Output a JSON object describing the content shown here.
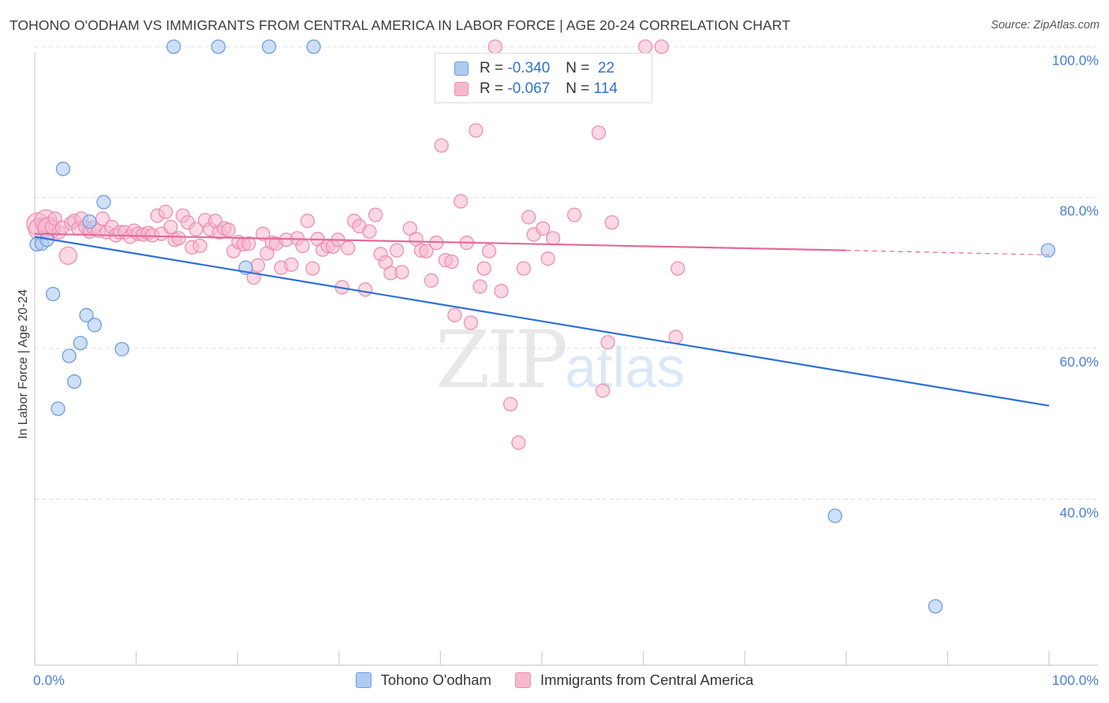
{
  "header": {
    "title": "TOHONO O'ODHAM VS IMMIGRANTS FROM CENTRAL AMERICA IN LABOR FORCE | AGE 20-24 CORRELATION CHART",
    "source": "Source: ZipAtlas.com"
  },
  "watermark": {
    "zip": "ZIP",
    "atlas": "atlas"
  },
  "legend": {
    "rows": [
      {
        "r_label": "R =",
        "r_value": "-0.340",
        "n_label": "N =",
        "n_value": "22"
      },
      {
        "r_label": "R =",
        "r_value": "-0.067",
        "n_label": "N =",
        "n_value": "114"
      }
    ]
  },
  "bottom_legend": {
    "series1": "Tohono O'odham",
    "series2": "Immigrants from Central America"
  },
  "colors": {
    "blue_fill": "#aecbf2",
    "blue_stroke": "#6f9ce0",
    "blue_line": "#2f6fd6",
    "pink_fill": "#f7b8cd",
    "pink_stroke": "#ec8fb0",
    "pink_line": "#e4699a",
    "grid": "#dedede",
    "axis_text": "#4a7fd4"
  },
  "chart_data": {
    "type": "scatter",
    "title": "TOHONO O'ODHAM VS IMMIGRANTS FROM CENTRAL AMERICA IN LABOR FORCE | AGE 20-24 CORRELATION CHART",
    "xlabel": "",
    "ylabel": "In Labor Force | Age 20-24",
    "xlim": [
      0,
      100
    ],
    "ylim": [
      18,
      102
    ],
    "x_tick_labels": [
      "0.0%",
      "100.0%"
    ],
    "y_ticks": [
      40,
      60,
      80,
      100
    ],
    "y_tick_labels": [
      "40.0%",
      "60.0%",
      "80.0%",
      "100.0%"
    ],
    "series": [
      {
        "name": "Tohono O'odham",
        "r": -0.34,
        "n": 22,
        "trend": {
          "x0": 0,
          "y0": 74.8,
          "x1": 100,
          "y1": 52.4
        },
        "points": [
          [
            0.2,
            73.8
          ],
          [
            0.7,
            73.9
          ],
          [
            1.2,
            74.4
          ],
          [
            1.8,
            67.2
          ],
          [
            2.3,
            52.0
          ],
          [
            2.8,
            83.8
          ],
          [
            3.4,
            59.0
          ],
          [
            3.9,
            55.6
          ],
          [
            4.5,
            60.7
          ],
          [
            5.1,
            64.4
          ],
          [
            5.4,
            76.8
          ],
          [
            5.9,
            63.1
          ],
          [
            6.8,
            79.4
          ],
          [
            8.6,
            59.9
          ],
          [
            13.7,
            100
          ],
          [
            18.1,
            100
          ],
          [
            20.8,
            70.7
          ],
          [
            23.1,
            100
          ],
          [
            27.5,
            100
          ],
          [
            78.9,
            37.8
          ],
          [
            88.8,
            25.8
          ],
          [
            99.9,
            73.0
          ]
        ]
      },
      {
        "name": "Immigrants from Central America",
        "r": -0.067,
        "n": 114,
        "trend": {
          "x0": 0,
          "y0": 75.2,
          "x1": 80,
          "y1": 73.0
        },
        "trend_dashed": {
          "x0": 80,
          "y0": 73.0,
          "x1": 100,
          "y1": 72.4
        },
        "points": [
          [
            0.3,
            76.5
          ],
          [
            0.5,
            75.8
          ],
          [
            0.8,
            76.3
          ],
          [
            1.1,
            76.9
          ],
          [
            1.4,
            75.9
          ],
          [
            1.7,
            76.1
          ],
          [
            2.0,
            77.2
          ],
          [
            2.4,
            75.4
          ],
          [
            2.7,
            76.0
          ],
          [
            3.3,
            72.3
          ],
          [
            3.6,
            76.6
          ],
          [
            3.9,
            76.9
          ],
          [
            4.3,
            75.9
          ],
          [
            4.6,
            77.2
          ],
          [
            5.0,
            76.1
          ],
          [
            5.4,
            75.5
          ],
          [
            5.8,
            76.0
          ],
          [
            6.3,
            75.6
          ],
          [
            6.7,
            77.2
          ],
          [
            7.1,
            75.4
          ],
          [
            7.6,
            76.1
          ],
          [
            8.0,
            75.0
          ],
          [
            8.4,
            75.4
          ],
          [
            8.9,
            75.4
          ],
          [
            9.4,
            74.8
          ],
          [
            9.8,
            75.6
          ],
          [
            10.2,
            75.2
          ],
          [
            10.7,
            75.1
          ],
          [
            11.2,
            75.3
          ],
          [
            11.6,
            75.0
          ],
          [
            12.1,
            77.6
          ],
          [
            12.5,
            75.2
          ],
          [
            12.9,
            78.1
          ],
          [
            13.4,
            76.1
          ],
          [
            13.8,
            74.4
          ],
          [
            14.2,
            74.6
          ],
          [
            14.6,
            77.6
          ],
          [
            15.1,
            76.7
          ],
          [
            15.5,
            73.4
          ],
          [
            15.9,
            75.8
          ],
          [
            16.3,
            73.6
          ],
          [
            16.8,
            77.0
          ],
          [
            17.3,
            75.8
          ],
          [
            17.8,
            76.9
          ],
          [
            18.2,
            75.4
          ],
          [
            18.7,
            75.9
          ],
          [
            19.1,
            75.7
          ],
          [
            19.6,
            72.9
          ],
          [
            20.1,
            74.1
          ],
          [
            20.6,
            73.8
          ],
          [
            21.1,
            73.9
          ],
          [
            21.6,
            69.4
          ],
          [
            22.0,
            71.0
          ],
          [
            22.5,
            75.2
          ],
          [
            22.9,
            72.6
          ],
          [
            23.4,
            74.0
          ],
          [
            23.8,
            73.9
          ],
          [
            24.3,
            70.7
          ],
          [
            24.8,
            74.4
          ],
          [
            25.3,
            71.1
          ],
          [
            25.9,
            74.6
          ],
          [
            26.4,
            73.6
          ],
          [
            26.9,
            76.9
          ],
          [
            27.4,
            70.6
          ],
          [
            27.9,
            74.5
          ],
          [
            28.4,
            73.1
          ],
          [
            28.9,
            73.6
          ],
          [
            29.4,
            73.5
          ],
          [
            29.9,
            74.4
          ],
          [
            30.3,
            68.1
          ],
          [
            30.9,
            73.3
          ],
          [
            31.5,
            76.9
          ],
          [
            32.0,
            76.2
          ],
          [
            32.6,
            67.8
          ],
          [
            33.0,
            75.5
          ],
          [
            33.6,
            77.7
          ],
          [
            34.1,
            72.5
          ],
          [
            34.6,
            71.4
          ],
          [
            35.1,
            70.0
          ],
          [
            35.7,
            73.0
          ],
          [
            36.2,
            70.1
          ],
          [
            37.0,
            75.9
          ],
          [
            37.6,
            74.5
          ],
          [
            38.1,
            73.0
          ],
          [
            38.6,
            72.9
          ],
          [
            39.1,
            69.0
          ],
          [
            39.6,
            74.0
          ],
          [
            40.1,
            86.9
          ],
          [
            40.5,
            71.7
          ],
          [
            41.1,
            71.5
          ],
          [
            41.4,
            64.4
          ],
          [
            42.0,
            79.5
          ],
          [
            42.6,
            74.0
          ],
          [
            43.0,
            63.4
          ],
          [
            43.5,
            88.9
          ],
          [
            43.9,
            68.2
          ],
          [
            44.3,
            70.6
          ],
          [
            44.8,
            72.9
          ],
          [
            45.4,
            100
          ],
          [
            46.0,
            67.6
          ],
          [
            46.9,
            52.6
          ],
          [
            47.7,
            47.5
          ],
          [
            48.2,
            70.6
          ],
          [
            48.7,
            77.4
          ],
          [
            49.2,
            75.1
          ],
          [
            50.1,
            75.9
          ],
          [
            50.6,
            71.9
          ],
          [
            51.1,
            74.6
          ],
          [
            53.2,
            77.7
          ],
          [
            55.6,
            88.6
          ],
          [
            56.0,
            54.4
          ],
          [
            56.5,
            60.8
          ],
          [
            56.9,
            76.7
          ],
          [
            60.2,
            100
          ],
          [
            61.8,
            100
          ],
          [
            63.2,
            61.5
          ],
          [
            63.4,
            70.6
          ]
        ]
      }
    ]
  }
}
